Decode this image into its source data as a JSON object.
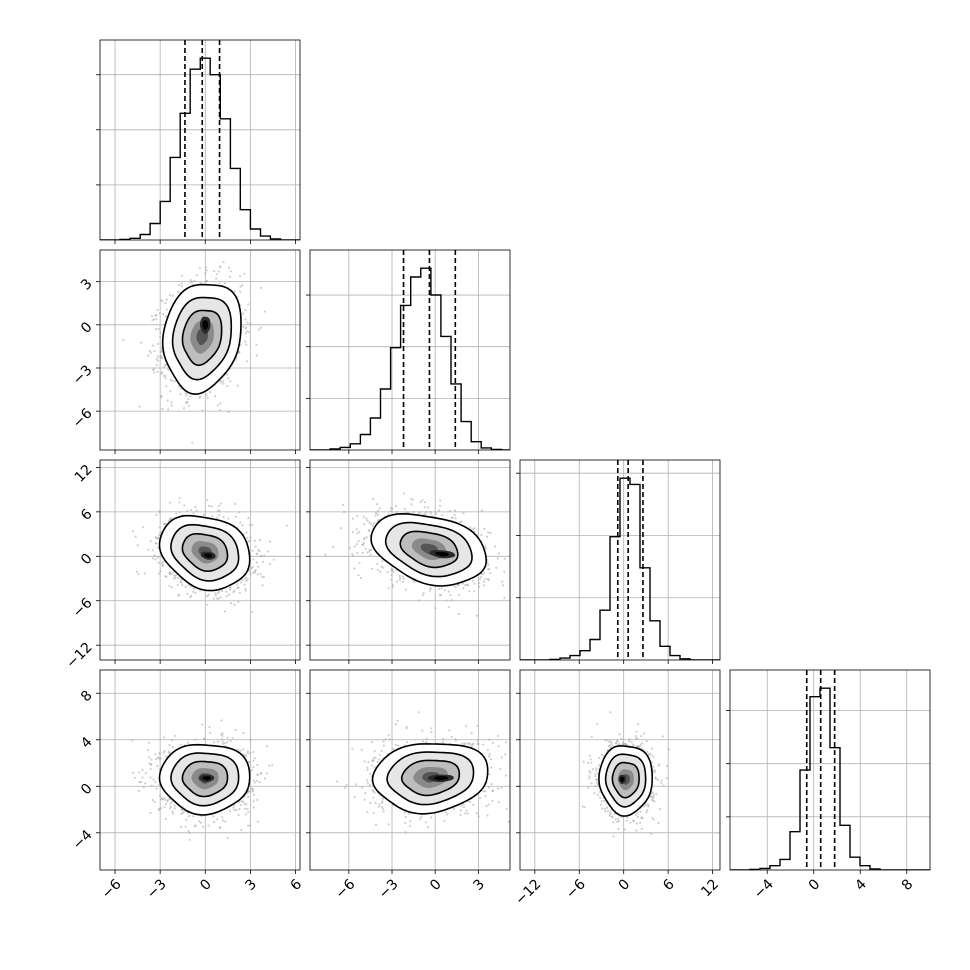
{
  "chart_data": {
    "type": "corner",
    "n_params": 4,
    "grid": true,
    "colors": {
      "line": "#000000",
      "grid": "#b0b0b0",
      "points": "#a8a8a8",
      "background": "#ffffff"
    },
    "params": [
      {
        "range": [
          -7,
          6.3
        ],
        "ticks": [
          -6,
          -3,
          0,
          3,
          6
        ],
        "tick_labels": [
          "−6",
          "−3",
          "0",
          "3",
          "6"
        ]
      },
      {
        "range": [
          -8.7,
          5.2
        ],
        "ticks": [
          -6,
          -3,
          0,
          3
        ],
        "tick_labels": [
          "−6",
          "−3",
          "0",
          "3"
        ]
      },
      {
        "range": [
          -14,
          13
        ],
        "ticks": [
          -12,
          -6,
          0,
          6,
          12
        ],
        "tick_labels": [
          "−12",
          "−6",
          "0",
          "6",
          "12"
        ]
      },
      {
        "range": [
          -7.2,
          10
        ],
        "ticks": [
          -4,
          0,
          4,
          8
        ],
        "tick_labels": [
          "−4",
          "0",
          "4",
          "8"
        ]
      }
    ],
    "marginals": [
      {
        "bin_edges": [
          -7.0,
          -6.33,
          -5.67,
          -5.0,
          -4.33,
          -3.67,
          -3.0,
          -2.33,
          -1.67,
          -1.0,
          -0.33,
          0.33,
          1.0,
          1.67,
          2.33,
          3.0,
          3.67,
          4.33,
          5.0,
          5.67,
          6.33
        ],
        "counts": [
          0,
          0,
          1,
          3,
          10,
          30,
          70,
          150,
          230,
          310,
          330,
          300,
          220,
          130,
          55,
          20,
          7,
          2,
          0,
          0
        ],
        "quantiles": [
          -1.35,
          -0.2,
          0.95
        ]
      },
      {
        "bin_edges": [
          -8.7,
          -8.0,
          -7.3,
          -6.6,
          -5.9,
          -5.2,
          -4.5,
          -3.8,
          -3.1,
          -2.4,
          -1.7,
          -1.0,
          -0.3,
          0.4,
          1.1,
          1.8,
          2.5,
          3.2,
          3.9,
          4.6,
          5.3
        ],
        "counts": [
          0,
          0,
          2,
          5,
          12,
          30,
          62,
          118,
          198,
          280,
          335,
          352,
          300,
          220,
          128,
          55,
          16,
          4,
          1,
          0
        ],
        "quantiles": [
          -2.2,
          -0.4,
          1.4
        ]
      },
      {
        "bin_edges": [
          -14.0,
          -12.65,
          -11.3,
          -9.95,
          -8.6,
          -7.25,
          -5.9,
          -4.55,
          -3.2,
          -1.85,
          -0.5,
          0.85,
          2.2,
          3.55,
          4.9,
          6.25,
          7.6,
          8.95,
          10.3,
          11.65,
          13.0
        ],
        "counts": [
          0,
          0,
          0,
          1,
          3,
          7,
          15,
          33,
          80,
          198,
          292,
          282,
          148,
          63,
          22,
          7,
          2,
          0,
          0,
          0
        ],
        "quantiles": [
          -0.8,
          0.6,
          2.6
        ]
      },
      {
        "bin_edges": [
          -7.2,
          -6.34,
          -5.48,
          -4.62,
          -3.76,
          -2.9,
          -2.04,
          -1.18,
          -0.32,
          0.54,
          1.4,
          2.26,
          3.12,
          3.98,
          4.84,
          5.7,
          6.56,
          7.42,
          8.28,
          9.14,
          10.0
        ],
        "counts": [
          0,
          0,
          1,
          3,
          8,
          20,
          72,
          188,
          326,
          342,
          230,
          84,
          24,
          8,
          2,
          0,
          0,
          0,
          0,
          0
        ],
        "quantiles": [
          -0.6,
          0.6,
          1.8
        ]
      }
    ],
    "pairs": [
      {
        "x_param": 0,
        "y_param": 1,
        "center": [
          -0.2,
          -0.8
        ],
        "sigma": [
          1.3,
          1.9
        ],
        "rho": 0.15,
        "peak": [
          0.0,
          0.0
        ],
        "peak_sigma": [
          0.35,
          0.6
        ],
        "peak_rho": 0.0
      },
      {
        "x_param": 0,
        "y_param": 2,
        "center": [
          0.0,
          0.6
        ],
        "sigma": [
          1.5,
          2.5
        ],
        "rho": -0.2,
        "peak": [
          0.2,
          0.1
        ],
        "peak_sigma": [
          0.5,
          0.55
        ],
        "peak_rho": -0.2
      },
      {
        "x_param": 1,
        "y_param": 2,
        "center": [
          -0.4,
          1.0
        ],
        "sigma": [
          2.0,
          2.4
        ],
        "rho": -0.3,
        "peak": [
          0.5,
          0.3
        ],
        "peak_sigma": [
          0.9,
          0.55
        ],
        "peak_rho": -0.3
      },
      {
        "x_param": 0,
        "y_param": 3,
        "center": [
          0.0,
          0.7
        ],
        "sigma": [
          1.5,
          1.5
        ],
        "rho": 0.0,
        "peak": [
          0.1,
          0.7
        ],
        "peak_sigma": [
          0.5,
          0.32
        ],
        "peak_rho": 0.0
      },
      {
        "x_param": 1,
        "y_param": 3,
        "center": [
          -0.3,
          0.8
        ],
        "sigma": [
          2.0,
          1.5
        ],
        "rho": 0.1,
        "peak": [
          0.4,
          0.7
        ],
        "peak_sigma": [
          0.9,
          0.32
        ],
        "peak_rho": 0.05
      },
      {
        "x_param": 2,
        "y_param": 3,
        "center": [
          0.3,
          0.6
        ],
        "sigma": [
          1.8,
          1.5
        ],
        "rho": 0.0,
        "peak": [
          -0.2,
          0.6
        ],
        "peak_sigma": [
          0.5,
          0.4
        ],
        "peak_rho": 0.0
      }
    ]
  }
}
